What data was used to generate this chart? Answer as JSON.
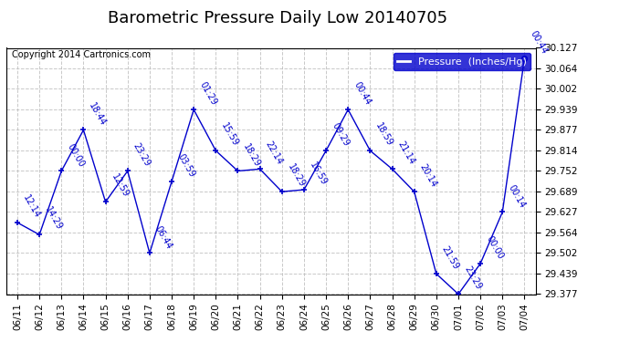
{
  "title": "Barometric Pressure Daily Low 20140705",
  "copyright": "Copyright 2014 Cartronics.com",
  "legend_label": "Pressure  (Inches/Hg)",
  "background_color": "#ffffff",
  "plot_bg_color": "#ffffff",
  "line_color": "#0000cc",
  "grid_color": "#bbbbbb",
  "dates": [
    "06/11",
    "06/12",
    "06/13",
    "06/14",
    "06/15",
    "06/16",
    "06/17",
    "06/18",
    "06/19",
    "06/20",
    "06/21",
    "06/22",
    "06/23",
    "06/24",
    "06/25",
    "06/26",
    "06/27",
    "06/28",
    "06/29",
    "06/30",
    "07/01",
    "07/02",
    "07/03",
    "07/04"
  ],
  "values": [
    29.595,
    29.558,
    29.752,
    29.877,
    29.658,
    29.752,
    29.502,
    29.72,
    29.939,
    29.814,
    29.752,
    29.758,
    29.689,
    29.695,
    29.814,
    29.939,
    29.814,
    29.758,
    29.689,
    29.439,
    29.377,
    29.47,
    29.627,
    30.095
  ],
  "times": [
    "12:14",
    "14:29",
    "00:00",
    "18:44",
    "12:59",
    "23:29",
    "06:44",
    "03:59",
    "01:29",
    "15:59",
    "18:29",
    "22:14",
    "18:29",
    "16:59",
    "09:29",
    "00:44",
    "18:59",
    "21:14",
    "20:14",
    "21:59",
    "23:29",
    "00:00",
    "00:14",
    "00:44"
  ],
  "ylim": [
    29.377,
    30.127
  ],
  "yticks": [
    29.377,
    29.439,
    29.502,
    29.564,
    29.627,
    29.689,
    29.752,
    29.814,
    29.877,
    29.939,
    30.002,
    30.064,
    30.127
  ],
  "title_fontsize": 13,
  "tick_fontsize": 7.5,
  "label_fontsize": 7,
  "copyright_fontsize": 7,
  "legend_fontsize": 8
}
